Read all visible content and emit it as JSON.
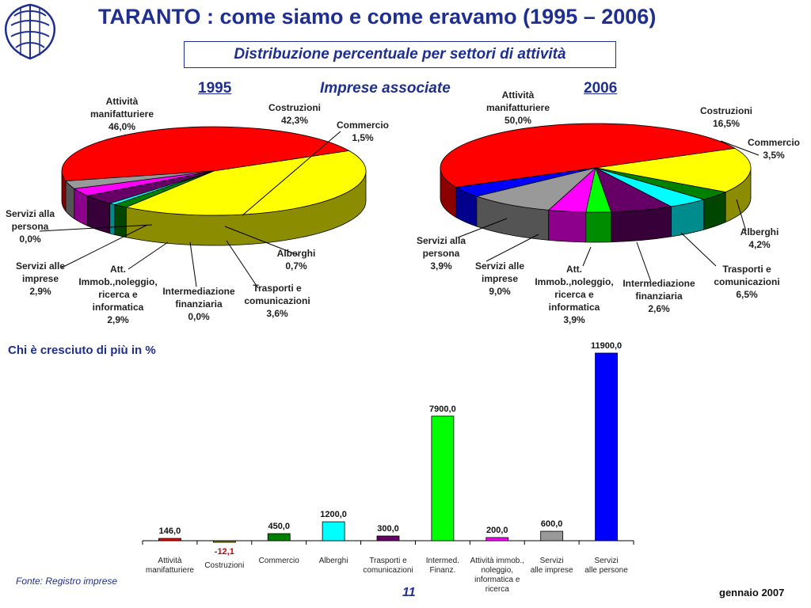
{
  "title": "TARANTO : come siamo e come eravamo (1995 – 2006)",
  "subtitle": "Distribuzione percentuale per settori di attività",
  "center_label": "Imprese associate",
  "source": "Fonte: Registro imprese",
  "page_number": "11",
  "date": "gennaio 2007",
  "colors": {
    "accent": "#1f2f8f",
    "manifatturiere": "#ff0000",
    "costruzioni": "#ffff00",
    "commercio": "#008000",
    "alberghi": "#00ffff",
    "trasporti": "#660066",
    "intermediazione": "#00ff00",
    "immobiliare": "#ff00ff",
    "servizi_imprese": "#999999",
    "servizi_persona": "#0000ff"
  },
  "chart_data": [
    {
      "type": "pie",
      "title": "1995",
      "slices": [
        {
          "key": "manifatturiere",
          "label": "Attività\nmanifatturiere\n46,0%",
          "value": 46.0
        },
        {
          "key": "costruzioni",
          "label": "Costruzioni\n42,3%",
          "value": 42.3
        },
        {
          "key": "commercio",
          "label": "Commercio\n1,5%",
          "value": 1.5
        },
        {
          "key": "alberghi",
          "label": "Alberghi\n0,7%",
          "value": 0.7
        },
        {
          "key": "trasporti",
          "label": "Trasporti e\ncomunicazioni\n3,6%",
          "value": 3.6
        },
        {
          "key": "intermediazione",
          "label": "Intermediazione\nfinanziaria\n0,0%",
          "value": 0.0
        },
        {
          "key": "immobiliare",
          "label": "Att.\nImmob.,noleggio,\nricerca e\ninformatica\n2,9%",
          "value": 2.9
        },
        {
          "key": "servizi_imprese",
          "label": "Servizi alle\nimprese\n2,9%",
          "value": 2.9
        },
        {
          "key": "servizi_persona",
          "label": "Servizi alla\npersona\n0,0%",
          "value": 0.0
        }
      ]
    },
    {
      "type": "pie",
      "title": "2006",
      "slices": [
        {
          "key": "manifatturiere",
          "label": "Attività\nmanifatturiere\n50,0%",
          "value": 50.0
        },
        {
          "key": "costruzioni",
          "label": "Costruzioni\n16,5%",
          "value": 16.5
        },
        {
          "key": "commercio",
          "label": "Commercio\n3,5%",
          "value": 3.5
        },
        {
          "key": "alberghi",
          "label": "Alberghi\n4,2%",
          "value": 4.2
        },
        {
          "key": "trasporti",
          "label": "Trasporti e\ncomunicazioni\n6,5%",
          "value": 6.5
        },
        {
          "key": "intermediazione",
          "label": "Intermediazione\nfinanziaria\n2,6%",
          "value": 2.6
        },
        {
          "key": "immobiliare",
          "label": "Att.\nImmob.,noleggio,\nricerca e\ninformatica\n3,9%",
          "value": 3.9
        },
        {
          "key": "servizi_imprese",
          "label": "Servizi alle\nimprese\n9,0%",
          "value": 9.0
        },
        {
          "key": "servizi_persona",
          "label": "Servizi alla\npersona\n3,9%",
          "value": 3.9
        }
      ]
    },
    {
      "type": "bar",
      "title": "Chi è cresciuto di più in %",
      "categories": [
        "Attività\nmanifatturiere",
        "Costruzioni",
        "Commercio",
        "Alberghi",
        "Trasporti e\ncomunicazioni",
        "Intermed.\nFinanz.",
        "Attività immob.,\nnoleggio,\ninformatica e\nricerca",
        "Servizi\nalle imprese",
        "Servizi\nalle persone"
      ],
      "values": [
        146.0,
        -12.1,
        450.0,
        1200.0,
        300.0,
        7900.0,
        200.0,
        600.0,
        11900.0
      ],
      "value_labels": [
        "146,0",
        "-12,1",
        "450,0",
        "1200,0",
        "300,0",
        "7900,0",
        "200,0",
        "600,0",
        "11900,0"
      ],
      "colors": [
        "#ff0000",
        "#808000",
        "#008000",
        "#00ffff",
        "#660066",
        "#00ff00",
        "#ff00ff",
        "#999999",
        "#0000ff"
      ],
      "ylim": [
        -200,
        11900
      ]
    }
  ]
}
